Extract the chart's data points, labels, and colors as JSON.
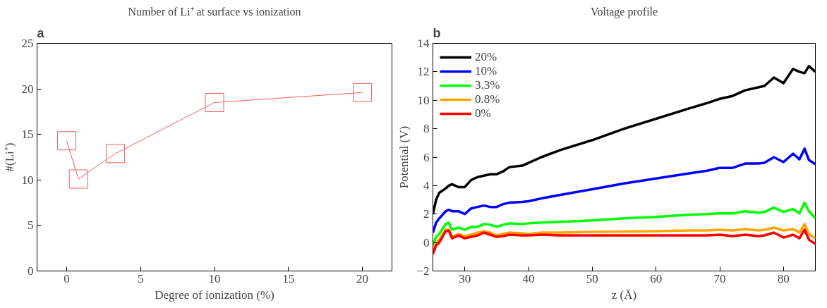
{
  "chart_data": [
    {
      "type": "line",
      "title": "Number of Li⁺ at surface vs ionization",
      "xlabel": "Degree of ionization (%)",
      "ylabel": "#(Li⁺)",
      "annotations": [
        "a"
      ],
      "x": [
        0,
        0.8,
        3.3,
        10,
        20
      ],
      "series": [
        {
          "color": "#f06060",
          "values": [
            14.3,
            10.1,
            12.9,
            18.5,
            19.6
          ]
        }
      ],
      "marker": "square",
      "xlim": [
        -2,
        22
      ],
      "ylim": [
        0,
        25
      ],
      "xticks": [
        0,
        5,
        10,
        15,
        20
      ],
      "yticks": [
        0,
        5,
        10,
        15,
        20,
        25
      ],
      "grid": false,
      "legend": false
    },
    {
      "type": "line",
      "title": "Voltage profile",
      "xlabel": "z (Å)",
      "ylabel": "Potential (V)",
      "annotations": [
        "b"
      ],
      "x": [
        25,
        25.5,
        26,
        27,
        27.5,
        28,
        29,
        30,
        31,
        32,
        33,
        34,
        35,
        36,
        37,
        39,
        40,
        42,
        45,
        50,
        55,
        60,
        65,
        68,
        70,
        72,
        74,
        76,
        77,
        78.5,
        80,
        81.5,
        82.5,
        83.3,
        84,
        85
      ],
      "series": [
        {
          "name": "20%",
          "color": "#000000",
          "values": [
            2.0,
            3.0,
            3.5,
            3.8,
            4.0,
            4.1,
            3.9,
            3.9,
            4.4,
            4.6,
            4.7,
            4.8,
            4.8,
            5.0,
            5.3,
            5.4,
            5.6,
            6.0,
            6.5,
            7.2,
            8.0,
            8.7,
            9.4,
            9.8,
            10.1,
            10.3,
            10.7,
            10.9,
            11.0,
            11.6,
            11.2,
            12.2,
            12.0,
            11.9,
            12.4,
            12.0
          ]
        },
        {
          "name": "10%",
          "color": "#0000ff",
          "values": [
            0.7,
            1.4,
            1.7,
            2.2,
            2.3,
            2.2,
            2.2,
            2.0,
            2.4,
            2.5,
            2.6,
            2.5,
            2.5,
            2.7,
            2.8,
            2.85,
            2.9,
            3.1,
            3.35,
            3.75,
            4.15,
            4.5,
            4.85,
            5.05,
            5.25,
            5.25,
            5.55,
            5.55,
            5.6,
            6.0,
            5.65,
            6.25,
            5.85,
            6.6,
            5.8,
            5.5
          ]
        },
        {
          "name": "3.3%",
          "color": "#00ff00",
          "values": [
            -0.2,
            0.4,
            0.6,
            1.3,
            1.4,
            0.9,
            1.05,
            0.9,
            1.1,
            1.1,
            1.3,
            1.25,
            1.1,
            1.25,
            1.35,
            1.3,
            1.35,
            1.4,
            1.45,
            1.55,
            1.7,
            1.8,
            1.95,
            2.0,
            2.05,
            2.05,
            2.2,
            2.1,
            2.15,
            2.45,
            2.15,
            2.35,
            2.05,
            2.8,
            2.2,
            1.7
          ]
        },
        {
          "name": "0.8%",
          "color": "#ffa500",
          "values": [
            -0.5,
            0.0,
            0.2,
            0.9,
            0.9,
            0.4,
            0.6,
            0.45,
            0.55,
            0.7,
            0.8,
            0.7,
            0.5,
            0.6,
            0.7,
            0.65,
            0.6,
            0.7,
            0.7,
            0.75,
            0.78,
            0.8,
            0.85,
            0.85,
            0.9,
            0.85,
            0.95,
            0.85,
            0.9,
            1.05,
            0.85,
            0.95,
            0.7,
            1.3,
            0.6,
            0.3
          ]
        },
        {
          "name": "0%",
          "color": "#ff0000",
          "values": [
            -0.8,
            -0.2,
            0.0,
            0.8,
            0.85,
            0.3,
            0.5,
            0.3,
            0.4,
            0.5,
            0.7,
            0.55,
            0.4,
            0.45,
            0.55,
            0.5,
            0.5,
            0.55,
            0.5,
            0.5,
            0.5,
            0.5,
            0.5,
            0.5,
            0.55,
            0.45,
            0.55,
            0.45,
            0.5,
            0.7,
            0.35,
            0.55,
            0.3,
            0.9,
            0.2,
            -0.1
          ]
        }
      ],
      "marker": "none",
      "xlim": [
        25,
        85
      ],
      "ylim": [
        -2,
        14
      ],
      "xticks": [
        30,
        40,
        50,
        60,
        70,
        80
      ],
      "yticks": [
        -2,
        0,
        2,
        4,
        6,
        8,
        10,
        12,
        14
      ],
      "grid": false,
      "legend": "top left"
    }
  ]
}
